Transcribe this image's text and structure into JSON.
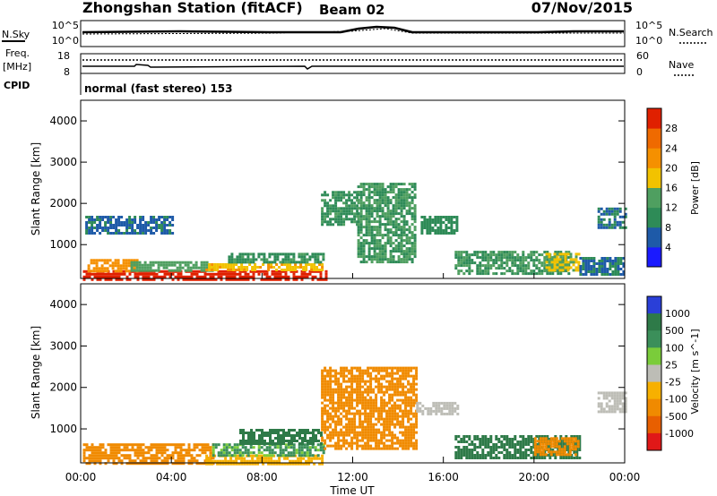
{
  "header": {
    "station": "Zhongshan Station (fitACF)",
    "beam": "Beam 02",
    "date": "07/Nov/2015"
  },
  "noise_panel": {
    "left_label": "N.Sky",
    "right_label": "N.Search",
    "y_ticks": [
      "10^5",
      "10^0"
    ]
  },
  "freq_panel": {
    "left_label_1": "Freq.",
    "left_label_2": "[MHz]",
    "left_ticks": [
      "18",
      "8"
    ],
    "right_label": "Nave",
    "right_ticks": [
      "60",
      "0"
    ]
  },
  "cpid": {
    "label": "CPID",
    "text": "normal (fast stereo) 153"
  },
  "x_axis": {
    "ticks": [
      "00:00",
      "04:00",
      "08:00",
      "12:00",
      "16:00",
      "20:00",
      "00:00"
    ],
    "label": "Time UT"
  },
  "colors": {
    "power": [
      "#1a1aff",
      "#1e5aa8",
      "#2e8b57",
      "#4f9f60",
      "#f2c200",
      "#f59000",
      "#ef6a00",
      "#e02000"
    ],
    "velocity_pos": [
      "#2a3fd8",
      "#2e7a48",
      "#3b8f5a",
      "#7acc3a",
      "#bdbdb6"
    ],
    "velocity_neg": [
      "#f7b000",
      "#f08a00",
      "#e85f00",
      "#e01818"
    ]
  },
  "chart_data": [
    {
      "type": "heatmap",
      "title": "",
      "xlabel": "Time UT",
      "ylabel": "Slant Range [km]",
      "colorbar_label": "Power [dB]",
      "x_range_hours": [
        0,
        24
      ],
      "ylim": [
        180,
        4500
      ],
      "y_ticks": [
        1000,
        2000,
        3000,
        4000
      ],
      "colorbar_ticks": [
        4,
        8,
        12,
        16,
        20,
        24,
        28
      ],
      "colorbar_range": [
        0,
        32
      ],
      "regions": [
        {
          "t_start": 0.1,
          "t_end": 10.8,
          "r_start": 180,
          "r_end": 380,
          "value": 30
        },
        {
          "t_start": 0.3,
          "t_end": 2.5,
          "r_start": 380,
          "r_end": 650,
          "value": 22
        },
        {
          "t_start": 2.2,
          "t_end": 5.8,
          "r_start": 380,
          "r_end": 600,
          "value": 14
        },
        {
          "t_start": 5.5,
          "t_end": 10.7,
          "r_start": 380,
          "r_end": 550,
          "value": 19
        },
        {
          "t_start": 6.5,
          "t_end": 10.7,
          "r_start": 550,
          "r_end": 800,
          "value": 11
        },
        {
          "t_start": 0.2,
          "t_end": 4.0,
          "r_start": 1300,
          "r_end": 1700,
          "value": 7
        },
        {
          "t_start": 10.6,
          "t_end": 12.2,
          "r_start": 1500,
          "r_end": 2300,
          "value": 11
        },
        {
          "t_start": 12.2,
          "t_end": 14.8,
          "r_start": 600,
          "r_end": 2500,
          "value": 12
        },
        {
          "t_start": 15.0,
          "t_end": 16.6,
          "r_start": 1300,
          "r_end": 1700,
          "value": 10
        },
        {
          "t_start": 16.5,
          "t_end": 21.5,
          "r_start": 300,
          "r_end": 850,
          "value": 12
        },
        {
          "t_start": 20.5,
          "t_end": 22.0,
          "r_start": 350,
          "r_end": 800,
          "value": 17
        },
        {
          "t_start": 22.0,
          "t_end": 24.0,
          "r_start": 300,
          "r_end": 700,
          "value": 8
        },
        {
          "t_start": 22.8,
          "t_end": 24.0,
          "r_start": 1400,
          "r_end": 1900,
          "value": 8
        }
      ]
    },
    {
      "type": "heatmap",
      "title": "",
      "xlabel": "Time UT",
      "ylabel": "Slant Range [km]",
      "colorbar_label": "Velocity [m s^-1]",
      "x_range_hours": [
        0,
        24
      ],
      "ylim": [
        180,
        4500
      ],
      "y_ticks": [
        1000,
        2000,
        3000,
        4000
      ],
      "colorbar_ticks": [
        "1000",
        "500",
        "100",
        "25",
        "-25",
        "-100",
        "-500",
        "-1000"
      ],
      "regions": [
        {
          "t_start": 0.1,
          "t_end": 5.8,
          "r_start": 180,
          "r_end": 650,
          "value": -250
        },
        {
          "t_start": 5.5,
          "t_end": 10.7,
          "r_start": 180,
          "r_end": 380,
          "value": -60
        },
        {
          "t_start": 5.8,
          "t_end": 10.7,
          "r_start": 380,
          "r_end": 650,
          "value": 80
        },
        {
          "t_start": 7.0,
          "t_end": 10.6,
          "r_start": 650,
          "r_end": 1000,
          "value": 300
        },
        {
          "t_start": 10.6,
          "t_end": 14.8,
          "r_start": 500,
          "r_end": 2500,
          "value": -300
        },
        {
          "t_start": 14.8,
          "t_end": 16.6,
          "r_start": 1350,
          "r_end": 1650,
          "value": 0
        },
        {
          "t_start": 16.5,
          "t_end": 22.0,
          "r_start": 300,
          "r_end": 850,
          "value": 300
        },
        {
          "t_start": 20.0,
          "t_end": 22.0,
          "r_start": 400,
          "r_end": 800,
          "value": -300
        },
        {
          "t_start": 22.8,
          "t_end": 24.0,
          "r_start": 1400,
          "r_end": 1900,
          "value": 0
        }
      ]
    }
  ]
}
